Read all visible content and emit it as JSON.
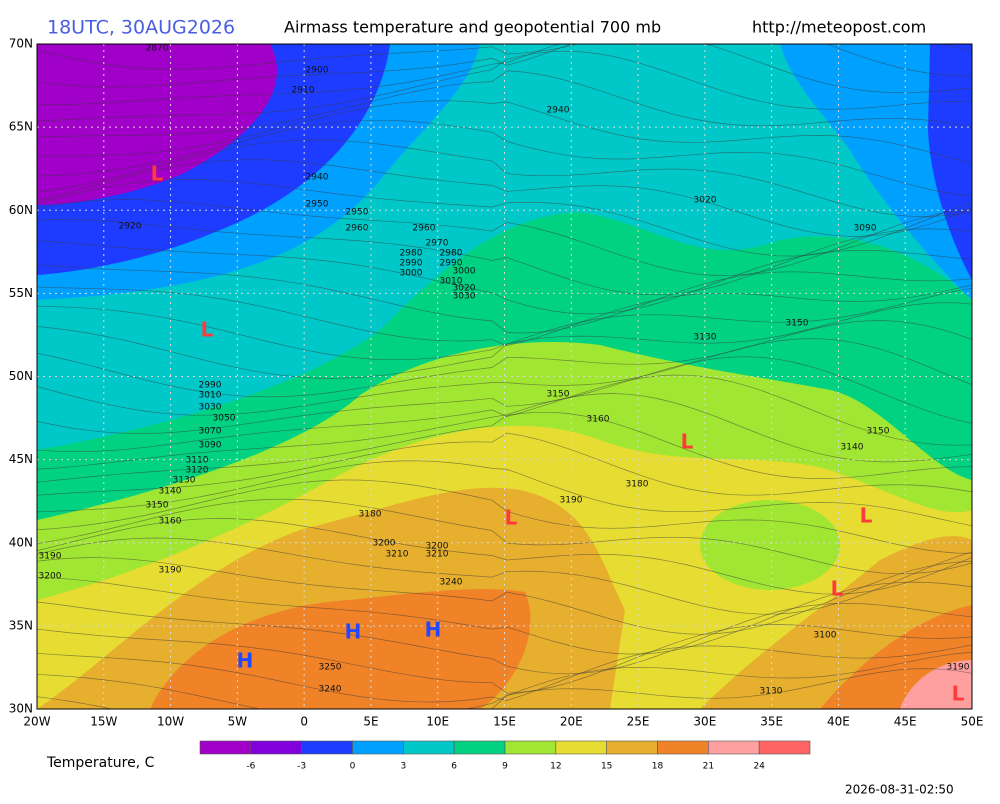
{
  "header": {
    "time": "18UTC, 30AUG2026",
    "title": "Airmass temperature and geopotential 700 mb",
    "url": "http://meteopost.com"
  },
  "axes": {
    "lon": [
      "20W",
      "15W",
      "10W",
      "5W",
      "0",
      "5E",
      "10E",
      "15E",
      "20E",
      "25E",
      "30E",
      "35E",
      "40E",
      "45E",
      "50E"
    ],
    "lat": [
      "70N",
      "65N",
      "60N",
      "55N",
      "50N",
      "45N",
      "40N",
      "35N",
      "30N"
    ]
  },
  "legend": {
    "title": "Temperature, C",
    "ticks": [
      -6,
      -3,
      0,
      3,
      6,
      9,
      12,
      15,
      18,
      21,
      24
    ],
    "colors": [
      "#a000c8",
      "#8200dc",
      "#1e3cff",
      "#00a0ff",
      "#00c8c8",
      "#00d282",
      "#a0e632",
      "#e6dc32",
      "#e6af2d",
      "#f08228",
      "#ffa0a0",
      "#ff6464"
    ]
  },
  "pressure_systems": [
    "L",
    "L",
    "L",
    "L",
    "L",
    "L",
    "L",
    "H",
    "H",
    "H"
  ],
  "contour_labels": [
    "2870",
    "2900",
    "2910",
    "2940",
    "2940",
    "2950",
    "2950",
    "2960",
    "2960",
    "2970",
    "2980",
    "2980",
    "2990",
    "2990",
    "3000",
    "3000",
    "3010",
    "3020",
    "3030",
    "3020",
    "3090",
    "2920",
    "3150",
    "3130",
    "2990",
    "3010",
    "3030",
    "3050",
    "3070",
    "3090",
    "3110",
    "3120",
    "3130",
    "3140",
    "3150",
    "3160",
    "3190",
    "3200",
    "3190",
    "3180",
    "3200",
    "3210",
    "3200",
    "3210",
    "3240",
    "3250",
    "3240",
    "3150",
    "3160",
    "3190",
    "3180",
    "3140",
    "3150",
    "3100",
    "3130",
    "3190"
  ],
  "timestamp": "2026-08-31-02:50"
}
